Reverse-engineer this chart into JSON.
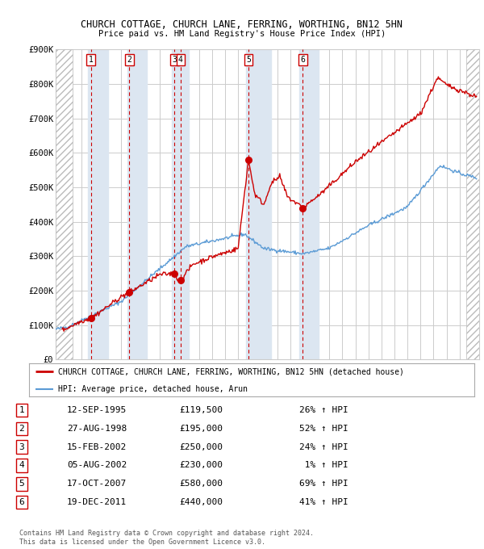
{
  "title1": "CHURCH COTTAGE, CHURCH LANE, FERRING, WORTHING, BN12 5HN",
  "title2": "Price paid vs. HM Land Registry's House Price Index (HPI)",
  "ylim": [
    0,
    900000
  ],
  "yticks": [
    0,
    100000,
    200000,
    300000,
    400000,
    500000,
    600000,
    700000,
    800000,
    900000
  ],
  "ytick_labels": [
    "£0",
    "£100K",
    "£200K",
    "£300K",
    "£400K",
    "£500K",
    "£600K",
    "£700K",
    "£800K",
    "£900K"
  ],
  "xlim_start": 1993.0,
  "xlim_end": 2025.5,
  "sale_dates": [
    1995.7,
    1998.65,
    2002.12,
    2002.59,
    2007.79,
    2011.96
  ],
  "sale_prices": [
    119500,
    195000,
    250000,
    230000,
    580000,
    440000
  ],
  "sale_labels": [
    "1",
    "2",
    "3",
    "4",
    "5",
    "6"
  ],
  "vspan_pairs": [
    [
      1995.5,
      1997.0
    ],
    [
      1998.5,
      2000.0
    ],
    [
      2001.9,
      2003.2
    ],
    [
      2007.6,
      2009.5
    ],
    [
      2011.7,
      2013.2
    ]
  ],
  "hatch_left_end": 1994.3,
  "hatch_right_start": 2024.5,
  "red_color": "#cc0000",
  "blue_color": "#5b9bd5",
  "grid_color": "#cccccc",
  "span_color": "#dce6f1",
  "background_color": "#ffffff",
  "legend_entries": [
    "CHURCH COTTAGE, CHURCH LANE, FERRING, WORTHING, BN12 5HN (detached house)",
    "HPI: Average price, detached house, Arun"
  ],
  "table_data": [
    [
      "1",
      "12-SEP-1995",
      "£119,500",
      "26% ↑ HPI"
    ],
    [
      "2",
      "27-AUG-1998",
      "£195,000",
      "52% ↑ HPI"
    ],
    [
      "3",
      "15-FEB-2002",
      "£250,000",
      "24% ↑ HPI"
    ],
    [
      "4",
      "05-AUG-2002",
      "£230,000",
      " 1% ↑ HPI"
    ],
    [
      "5",
      "17-OCT-2007",
      "£580,000",
      "69% ↑ HPI"
    ],
    [
      "6",
      "19-DEC-2011",
      "£440,000",
      "41% ↑ HPI"
    ]
  ],
  "footer": "Contains HM Land Registry data © Crown copyright and database right 2024.\nThis data is licensed under the Open Government Licence v3.0."
}
